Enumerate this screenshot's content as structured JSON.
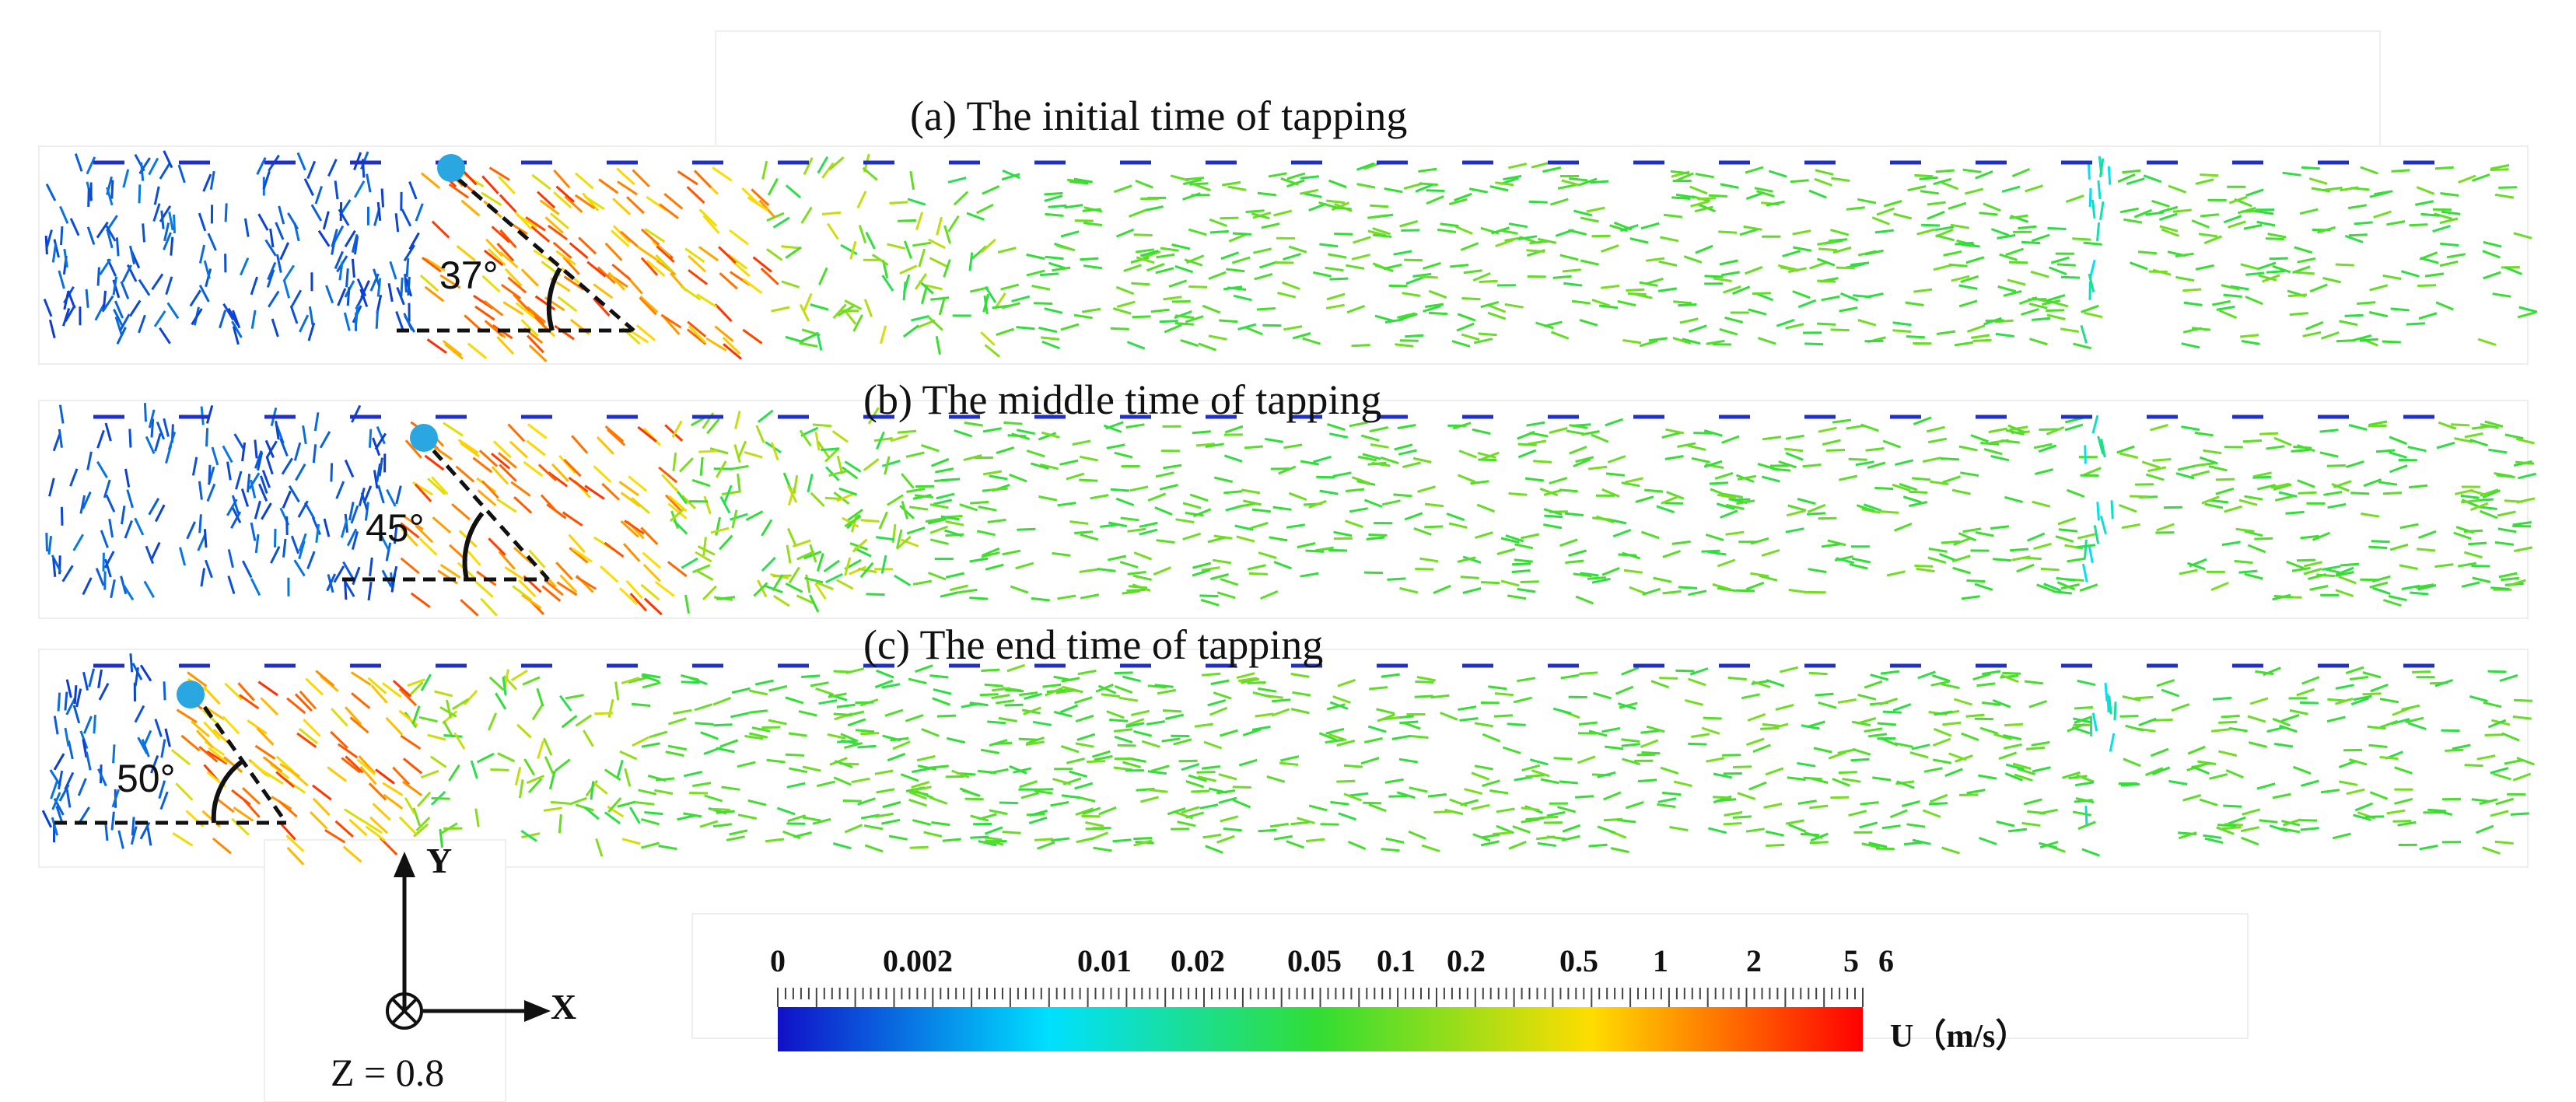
{
  "panels": [
    {
      "title": "(a) The initial time of tapping",
      "angle": "37°"
    },
    {
      "title": "(b) The middle time of tapping",
      "angle": "45°"
    },
    {
      "title": "(c) The end time of tapping",
      "angle": "50°"
    }
  ],
  "axes": {
    "y_label": "Y",
    "x_label": "X",
    "z_text": "Z = 0.8"
  },
  "colorbar": {
    "ticks": [
      "0",
      "0.002",
      "0.01",
      "0.02",
      "0.05",
      "0.1",
      "0.2",
      "0.5",
      "1",
      "2",
      "5",
      "6"
    ],
    "unit": "U（m/s）",
    "scale": "log",
    "colors": [
      "#1010c8",
      "#00ffff",
      "#33dd33",
      "#ffdd00",
      "#ff0000"
    ]
  }
}
